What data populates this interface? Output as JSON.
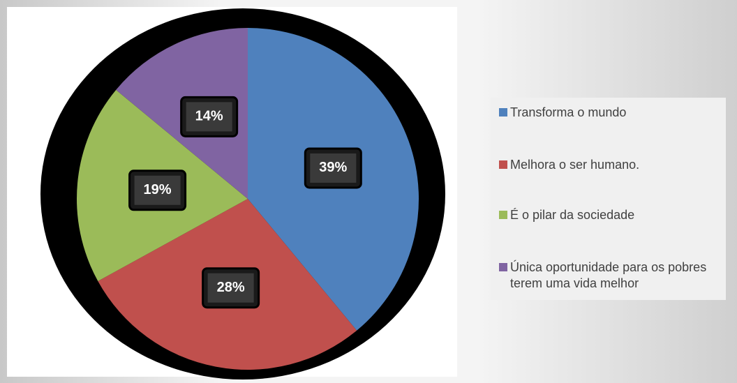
{
  "chart_data": {
    "type": "pie",
    "categories": [
      "Transforma o mundo",
      "Melhora o ser humano.",
      "É o pilar da sociedade",
      "Única oportunidade para os pobres terem uma vida melhor"
    ],
    "values": [
      39,
      28,
      19,
      14
    ],
    "value_labels": [
      "39%",
      "28%",
      "19%",
      "14%"
    ],
    "colors": [
      "#4f81bd",
      "#c0504d",
      "#9bbb59",
      "#8064a2"
    ],
    "legend": "right"
  }
}
